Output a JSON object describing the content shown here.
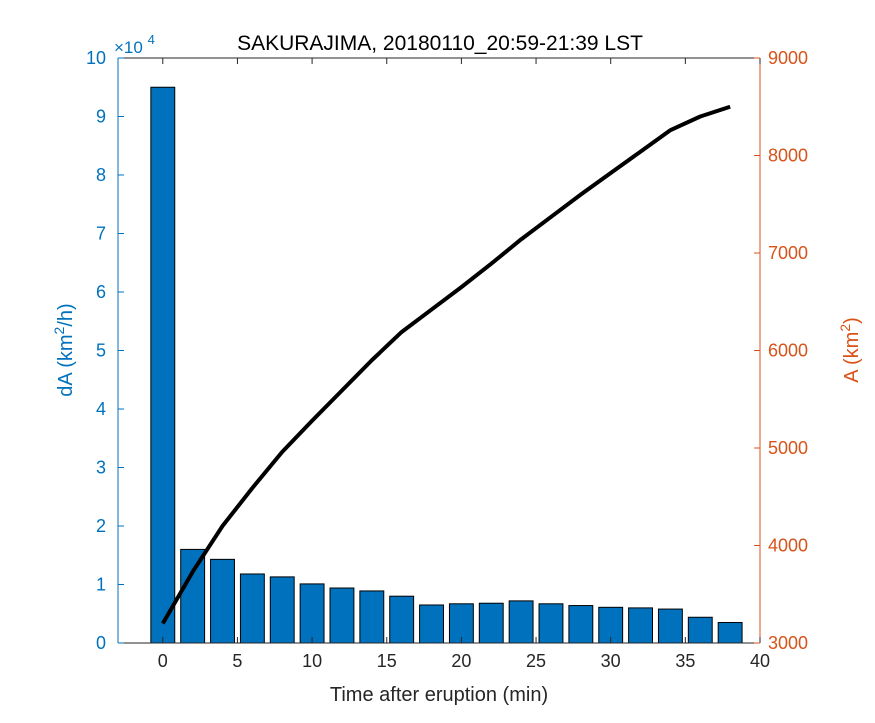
{
  "chart_data": {
    "type": "bar",
    "title": "SAKURAJIMA, 20180110_20:59-21:39 LST",
    "xlabel": "Time after eruption (min)",
    "ylabel_left": "dA (km",
    "ylabel_left_sup": "2",
    "ylabel_left_suffix": "/h)",
    "ylabel_right": "A (km",
    "ylabel_right_sup": "2",
    "ylabel_right_suffix": ")",
    "left_exponent_base": "×10",
    "left_exponent_power": "4",
    "xlim": [
      -3,
      40
    ],
    "ylim_left": [
      0,
      10
    ],
    "ylim_right": [
      3000,
      9000
    ],
    "x_ticks": [
      0,
      5,
      10,
      15,
      20,
      25,
      30,
      35,
      40
    ],
    "x_tick_labels": [
      "0",
      "5",
      "10",
      "15",
      "20",
      "25",
      "30",
      "35",
      "40"
    ],
    "y_left_ticks": [
      0,
      1,
      2,
      3,
      4,
      5,
      6,
      7,
      8,
      9,
      10
    ],
    "y_left_tick_labels": [
      "0",
      "1",
      "2",
      "3",
      "4",
      "5",
      "6",
      "7",
      "8",
      "9",
      "10"
    ],
    "y_right_ticks": [
      3000,
      4000,
      5000,
      6000,
      7000,
      8000,
      9000
    ],
    "y_right_tick_labels": [
      "3000",
      "4000",
      "5000",
      "6000",
      "7000",
      "8000",
      "9000"
    ],
    "grid": false,
    "bars": {
      "axis": "left",
      "scale": 10000,
      "x": [
        0,
        2,
        4,
        6,
        8,
        10,
        12,
        14,
        16,
        18,
        20,
        22,
        24,
        26,
        28,
        30,
        32,
        34,
        36,
        38
      ],
      "values": [
        9.5,
        1.6,
        1.43,
        1.18,
        1.13,
        1.01,
        0.94,
        0.89,
        0.8,
        0.65,
        0.67,
        0.68,
        0.72,
        0.67,
        0.64,
        0.61,
        0.6,
        0.58,
        0.44,
        0.35
      ]
    },
    "line": {
      "axis": "right",
      "x": [
        0,
        2,
        4,
        6,
        8,
        10,
        12,
        14,
        16,
        18,
        20,
        22,
        24,
        26,
        28,
        30,
        32,
        34,
        36,
        38
      ],
      "values": [
        3200,
        3730,
        4200,
        4590,
        4960,
        5280,
        5590,
        5900,
        6190,
        6420,
        6650,
        6890,
        7140,
        7370,
        7600,
        7820,
        8040,
        8260,
        8400,
        8500
      ]
    },
    "colors": {
      "bar": "#0072BD",
      "line": "#000000",
      "left_axis": "#0072BD",
      "right_axis": "#D95319",
      "bottom_axis": "#262626"
    }
  }
}
